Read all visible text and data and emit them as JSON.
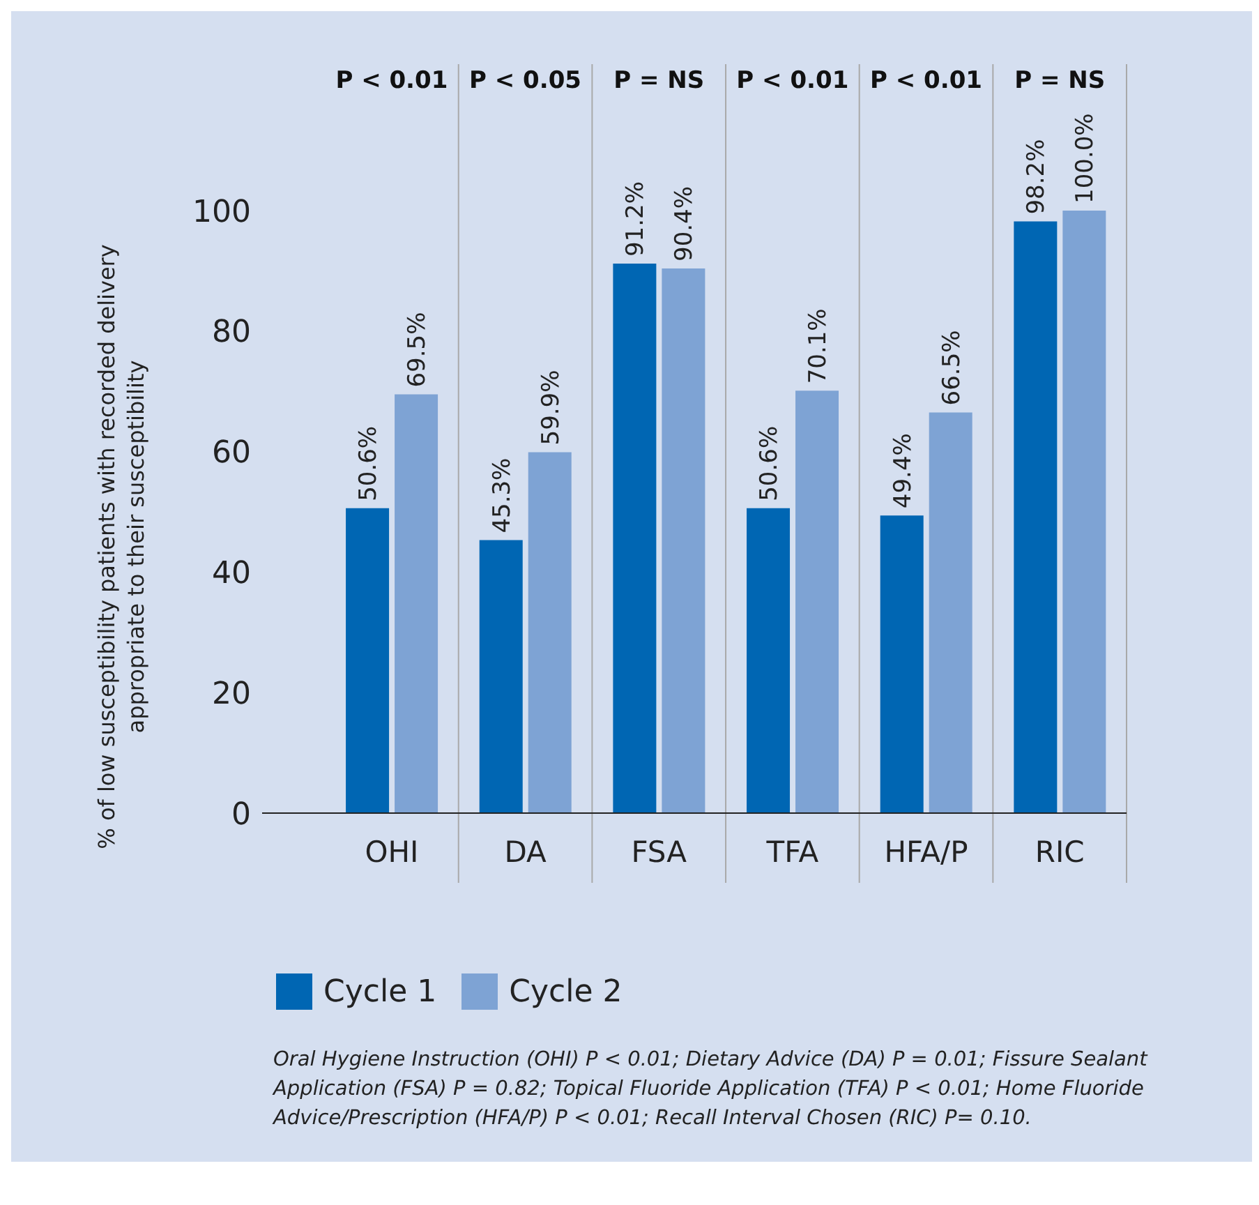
{
  "chart_data": {
    "type": "bar",
    "ylabel": "% of low susceptibility patients with recorded delivery appropriate to their susceptibility",
    "categories": [
      "OHI",
      "DA",
      "FSA",
      "TFA",
      "HFA/P",
      "RIC"
    ],
    "series": [
      {
        "name": "Cycle 1",
        "color": "#0066b3",
        "values": [
          50.6,
          45.3,
          91.2,
          50.6,
          49.4,
          98.2
        ],
        "value_labels": [
          "50.6%",
          "45.3%",
          "91.2%",
          "50.6%",
          "49.4%",
          "98.2%"
        ]
      },
      {
        "name": "Cycle 2",
        "color": "#7ea3d4",
        "values": [
          69.5,
          59.9,
          90.4,
          70.1,
          66.5,
          100.0
        ],
        "value_labels": [
          "69.5%",
          "59.9%",
          "90.4%",
          "70.1%",
          "66.5%",
          "100.0%"
        ]
      }
    ],
    "ylim": [
      0,
      100
    ],
    "yticks": [
      0,
      20,
      40,
      60,
      80,
      100
    ],
    "grid": "x",
    "legend": "bottom left",
    "annotations": [
      "P < 0.01",
      "P < 0.05",
      "P = NS",
      "P < 0.01",
      "P < 0.01",
      "P = NS",
      "Oral Hygiene Instruction (OHI) P < 0.01; Dietary Advice (DA) P = 0.01; Fissure Sealant Application (FSA) P = 0.82; Topical Fluoride Application (TFA) P < 0.01; Home Fluoride Advice/Prescription (HFA/P) P < 0.01; Recall Interval Chosen (RIC)  P= 0.10."
    ]
  }
}
